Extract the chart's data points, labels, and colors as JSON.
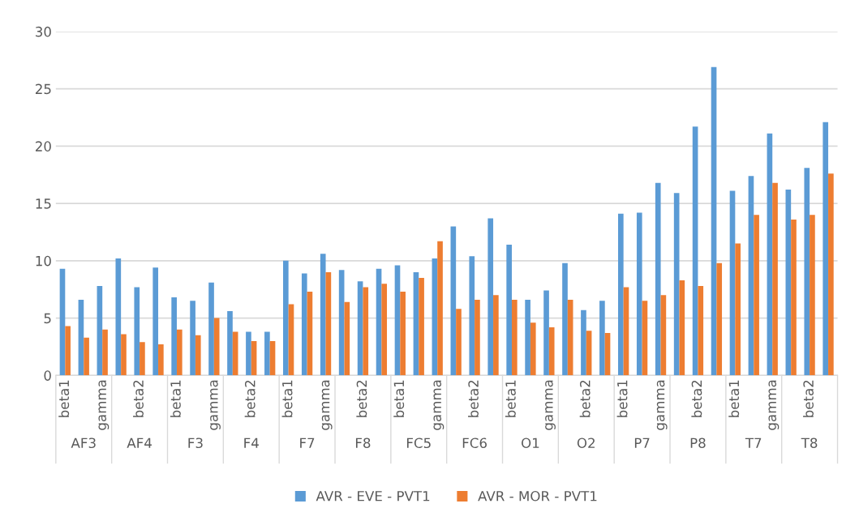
{
  "chart_data": {
    "type": "bar",
    "categories": [
      "beta1",
      null,
      "gamma",
      null,
      "beta2",
      null,
      "beta1",
      null,
      "gamma",
      null,
      "beta2",
      null,
      "beta1",
      null,
      "gamma",
      null,
      "beta2",
      null,
      "beta1",
      null,
      "gamma",
      null,
      "beta2",
      null,
      "beta1",
      null,
      "gamma",
      null,
      "beta2",
      null,
      "beta1",
      null,
      "gamma",
      null,
      "beta2",
      null,
      "beta1",
      null,
      "gamma",
      null,
      "beta2",
      null
    ],
    "annotations": [
      "AF3",
      "AF4",
      "F3",
      "F4",
      "F7",
      "F8",
      "FC5",
      "FC6",
      "O1",
      "O2",
      "P7",
      "P8",
      "T7",
      "T8"
    ],
    "series": [
      {
        "name": "AVR - EVE - PVT1",
        "color": "#5b9bd5",
        "values": [
          9.3,
          6.6,
          7.8,
          10.2,
          7.7,
          9.4,
          6.8,
          6.5,
          8.1,
          5.6,
          3.8,
          3.8,
          10.0,
          8.9,
          10.6,
          9.2,
          8.2,
          9.3,
          9.6,
          9.0,
          10.2,
          13.0,
          10.4,
          13.7,
          11.4,
          6.6,
          7.4,
          9.8,
          5.7,
          6.5,
          14.1,
          14.2,
          16.8,
          15.9,
          21.7,
          26.9,
          16.1,
          17.4,
          21.1,
          16.2,
          18.1,
          22.1
        ]
      },
      {
        "name": "AVR - MOR - PVT1",
        "color": "#ed7d31",
        "values": [
          4.3,
          3.3,
          4.0,
          3.6,
          2.9,
          2.7,
          4.0,
          3.5,
          5.0,
          3.8,
          3.0,
          3.0,
          6.2,
          7.3,
          9.0,
          6.4,
          7.7,
          8.0,
          7.3,
          8.5,
          11.7,
          5.8,
          6.6,
          7.0,
          6.6,
          4.6,
          4.2,
          6.6,
          3.9,
          3.7,
          7.7,
          6.5,
          7.0,
          8.3,
          7.8,
          9.8,
          11.5,
          14.0,
          16.8,
          13.6,
          14.0,
          17.6
        ]
      }
    ],
    "ylim": [
      0,
      30
    ],
    "yticks": [
      0,
      5,
      10,
      15,
      20,
      25,
      30
    ],
    "grid": "y",
    "legend": "bottom"
  }
}
